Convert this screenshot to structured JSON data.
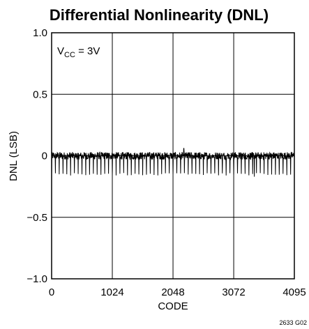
{
  "chart_data": {
    "type": "line",
    "title": "Differential Nonlinearity (DNL)",
    "xlabel": "CODE",
    "ylabel": "DNL (LSB)",
    "xlim": [
      0,
      4095
    ],
    "ylim": [
      -1.0,
      1.0
    ],
    "x_ticks": [
      0,
      1024,
      2048,
      3072,
      4095
    ],
    "x_tick_labels": [
      "0",
      "1024",
      "2048",
      "3072",
      "4095"
    ],
    "y_ticks": [
      1.0,
      0.5,
      0,
      -0.5,
      -1.0
    ],
    "y_tick_labels": [
      "1.0",
      "0.5",
      "0",
      "−0.5",
      "−1.0"
    ],
    "grid": true,
    "annotation": {
      "main": "V",
      "sub": "CC",
      "rest": " = 3V"
    },
    "series": [
      {
        "color": "#000000",
        "description_values": {
          "typical_high": 0.03,
          "typical_low": -0.03,
          "max": 0.06,
          "min": -0.17,
          "periodic_dip": -0.15,
          "dip_period_codes": 64
        }
      }
    ],
    "figure_note": "2633 G02"
  }
}
